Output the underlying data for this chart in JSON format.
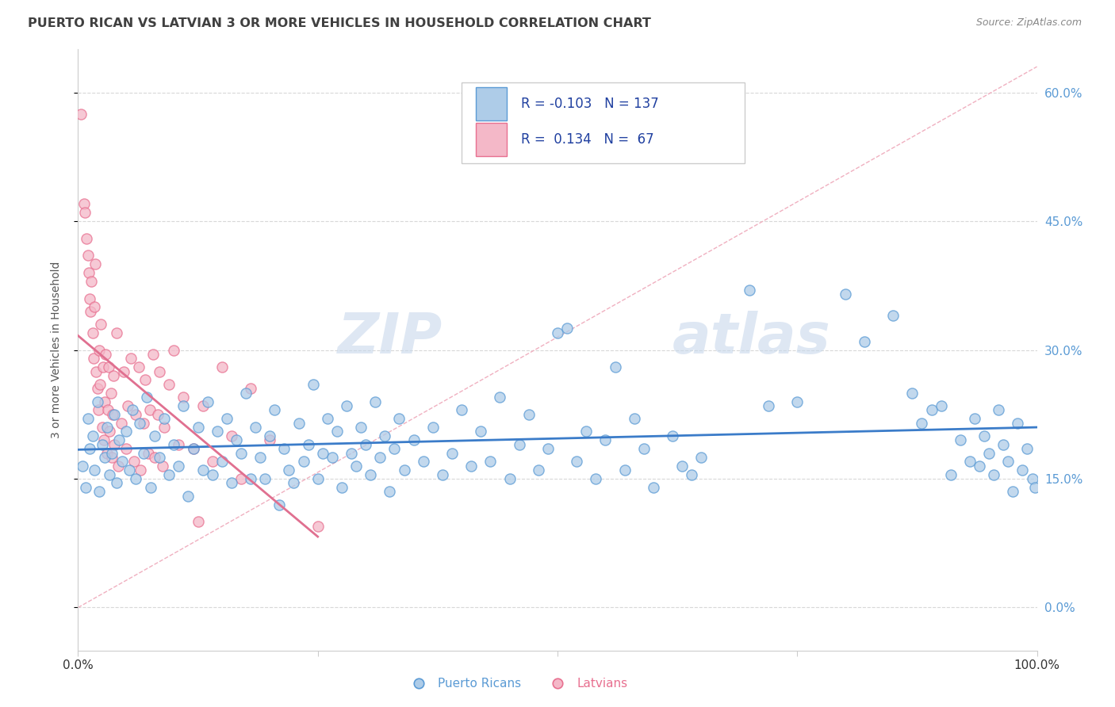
{
  "title": "PUERTO RICAN VS LATVIAN 3 OR MORE VEHICLES IN HOUSEHOLD CORRELATION CHART",
  "source": "Source: ZipAtlas.com",
  "ylabel": "3 or more Vehicles in Household",
  "xlim": [
    0.0,
    100.0
  ],
  "ylim": [
    -5.0,
    65.0
  ],
  "yticks": [
    0.0,
    15.0,
    30.0,
    45.0,
    60.0
  ],
  "ytick_labels": [
    "0.0%",
    "15.0%",
    "30.0%",
    "45.0%",
    "60.0%"
  ],
  "watermark_zip": "ZIP",
  "watermark_atlas": "atlas",
  "pr_color": "#aecce8",
  "pr_edge_color": "#5b9bd5",
  "lv_color": "#f4b8c8",
  "lv_edge_color": "#e87090",
  "pr_line_color": "#3b7cc9",
  "lv_line_color": "#e07090",
  "ref_line_color": "#e0a0b0",
  "grid_color": "#d8d8d8",
  "title_color": "#404040",
  "source_color": "#888888",
  "right_tick_color": "#5b9bd5",
  "legend_text_color": "#2040a0",
  "legend_label_color": "#333333",
  "background_color": "#ffffff",
  "pr_scatter": [
    [
      0.5,
      16.5
    ],
    [
      0.8,
      14.0
    ],
    [
      1.0,
      22.0
    ],
    [
      1.2,
      18.5
    ],
    [
      1.5,
      20.0
    ],
    [
      1.7,
      16.0
    ],
    [
      2.0,
      24.0
    ],
    [
      2.2,
      13.5
    ],
    [
      2.5,
      19.0
    ],
    [
      2.8,
      17.5
    ],
    [
      3.0,
      21.0
    ],
    [
      3.3,
      15.5
    ],
    [
      3.5,
      18.0
    ],
    [
      3.8,
      22.5
    ],
    [
      4.0,
      14.5
    ],
    [
      4.3,
      19.5
    ],
    [
      4.6,
      17.0
    ],
    [
      5.0,
      20.5
    ],
    [
      5.3,
      16.0
    ],
    [
      5.7,
      23.0
    ],
    [
      6.0,
      15.0
    ],
    [
      6.4,
      21.5
    ],
    [
      6.8,
      18.0
    ],
    [
      7.2,
      24.5
    ],
    [
      7.6,
      14.0
    ],
    [
      8.0,
      20.0
    ],
    [
      8.5,
      17.5
    ],
    [
      9.0,
      22.0
    ],
    [
      9.5,
      15.5
    ],
    [
      10.0,
      19.0
    ],
    [
      10.5,
      16.5
    ],
    [
      11.0,
      23.5
    ],
    [
      11.5,
      13.0
    ],
    [
      12.0,
      18.5
    ],
    [
      12.5,
      21.0
    ],
    [
      13.0,
      16.0
    ],
    [
      13.5,
      24.0
    ],
    [
      14.0,
      15.5
    ],
    [
      14.5,
      20.5
    ],
    [
      15.0,
      17.0
    ],
    [
      15.5,
      22.0
    ],
    [
      16.0,
      14.5
    ],
    [
      16.5,
      19.5
    ],
    [
      17.0,
      18.0
    ],
    [
      17.5,
      25.0
    ],
    [
      18.0,
      15.0
    ],
    [
      18.5,
      21.0
    ],
    [
      19.0,
      17.5
    ],
    [
      19.5,
      15.0
    ],
    [
      20.0,
      20.0
    ],
    [
      20.5,
      23.0
    ],
    [
      21.0,
      12.0
    ],
    [
      21.5,
      18.5
    ],
    [
      22.0,
      16.0
    ],
    [
      22.5,
      14.5
    ],
    [
      23.0,
      21.5
    ],
    [
      23.5,
      17.0
    ],
    [
      24.0,
      19.0
    ],
    [
      24.5,
      26.0
    ],
    [
      25.0,
      15.0
    ],
    [
      25.5,
      18.0
    ],
    [
      26.0,
      22.0
    ],
    [
      26.5,
      17.5
    ],
    [
      27.0,
      20.5
    ],
    [
      27.5,
      14.0
    ],
    [
      28.0,
      23.5
    ],
    [
      28.5,
      18.0
    ],
    [
      29.0,
      16.5
    ],
    [
      29.5,
      21.0
    ],
    [
      30.0,
      19.0
    ],
    [
      30.5,
      15.5
    ],
    [
      31.0,
      24.0
    ],
    [
      31.5,
      17.5
    ],
    [
      32.0,
      20.0
    ],
    [
      32.5,
      13.5
    ],
    [
      33.0,
      18.5
    ],
    [
      33.5,
      22.0
    ],
    [
      34.0,
      16.0
    ],
    [
      35.0,
      19.5
    ],
    [
      36.0,
      17.0
    ],
    [
      37.0,
      21.0
    ],
    [
      38.0,
      15.5
    ],
    [
      39.0,
      18.0
    ],
    [
      40.0,
      23.0
    ],
    [
      41.0,
      16.5
    ],
    [
      42.0,
      20.5
    ],
    [
      43.0,
      17.0
    ],
    [
      44.0,
      24.5
    ],
    [
      45.0,
      15.0
    ],
    [
      46.0,
      19.0
    ],
    [
      47.0,
      22.5
    ],
    [
      48.0,
      16.0
    ],
    [
      49.0,
      18.5
    ],
    [
      50.0,
      32.0
    ],
    [
      51.0,
      32.5
    ],
    [
      52.0,
      17.0
    ],
    [
      53.0,
      20.5
    ],
    [
      54.0,
      15.0
    ],
    [
      55.0,
      19.5
    ],
    [
      56.0,
      28.0
    ],
    [
      57.0,
      16.0
    ],
    [
      58.0,
      22.0
    ],
    [
      59.0,
      18.5
    ],
    [
      60.0,
      14.0
    ],
    [
      62.0,
      20.0
    ],
    [
      63.0,
      16.5
    ],
    [
      64.0,
      15.5
    ],
    [
      65.0,
      17.5
    ],
    [
      70.0,
      37.0
    ],
    [
      72.0,
      23.5
    ],
    [
      75.0,
      24.0
    ],
    [
      80.0,
      36.5
    ],
    [
      82.0,
      31.0
    ],
    [
      85.0,
      34.0
    ],
    [
      87.0,
      25.0
    ],
    [
      88.0,
      21.5
    ],
    [
      89.0,
      23.0
    ],
    [
      90.0,
      23.5
    ],
    [
      91.0,
      15.5
    ],
    [
      92.0,
      19.5
    ],
    [
      93.0,
      17.0
    ],
    [
      93.5,
      22.0
    ],
    [
      94.0,
      16.5
    ],
    [
      94.5,
      20.0
    ],
    [
      95.0,
      18.0
    ],
    [
      95.5,
      15.5
    ],
    [
      96.0,
      23.0
    ],
    [
      96.5,
      19.0
    ],
    [
      97.0,
      17.0
    ],
    [
      97.5,
      13.5
    ],
    [
      98.0,
      21.5
    ],
    [
      98.5,
      16.0
    ],
    [
      99.0,
      18.5
    ],
    [
      99.5,
      15.0
    ],
    [
      99.8,
      14.0
    ]
  ],
  "lv_scatter": [
    [
      0.3,
      57.5
    ],
    [
      0.6,
      47.0
    ],
    [
      0.7,
      46.0
    ],
    [
      0.9,
      43.0
    ],
    [
      1.0,
      41.0
    ],
    [
      1.1,
      39.0
    ],
    [
      1.2,
      36.0
    ],
    [
      1.3,
      34.5
    ],
    [
      1.4,
      38.0
    ],
    [
      1.5,
      32.0
    ],
    [
      1.6,
      29.0
    ],
    [
      1.7,
      35.0
    ],
    [
      1.8,
      40.0
    ],
    [
      1.9,
      27.5
    ],
    [
      2.0,
      25.5
    ],
    [
      2.1,
      23.0
    ],
    [
      2.2,
      30.0
    ],
    [
      2.3,
      26.0
    ],
    [
      2.4,
      33.0
    ],
    [
      2.5,
      21.0
    ],
    [
      2.6,
      28.0
    ],
    [
      2.7,
      19.5
    ],
    [
      2.8,
      24.0
    ],
    [
      2.9,
      29.5
    ],
    [
      3.0,
      18.0
    ],
    [
      3.1,
      23.0
    ],
    [
      3.2,
      28.0
    ],
    [
      3.3,
      20.5
    ],
    [
      3.4,
      25.0
    ],
    [
      3.5,
      17.5
    ],
    [
      3.6,
      22.5
    ],
    [
      3.7,
      27.0
    ],
    [
      3.8,
      19.0
    ],
    [
      4.0,
      32.0
    ],
    [
      4.2,
      16.5
    ],
    [
      4.5,
      21.5
    ],
    [
      4.8,
      27.5
    ],
    [
      5.0,
      18.5
    ],
    [
      5.2,
      23.5
    ],
    [
      5.5,
      29.0
    ],
    [
      5.8,
      17.0
    ],
    [
      6.0,
      22.5
    ],
    [
      6.3,
      28.0
    ],
    [
      6.5,
      16.0
    ],
    [
      6.8,
      21.5
    ],
    [
      7.0,
      26.5
    ],
    [
      7.3,
      18.0
    ],
    [
      7.5,
      23.0
    ],
    [
      7.8,
      29.5
    ],
    [
      8.0,
      17.5
    ],
    [
      8.3,
      22.5
    ],
    [
      8.5,
      27.5
    ],
    [
      8.8,
      16.5
    ],
    [
      9.0,
      21.0
    ],
    [
      9.5,
      26.0
    ],
    [
      10.0,
      30.0
    ],
    [
      10.5,
      19.0
    ],
    [
      11.0,
      24.5
    ],
    [
      12.0,
      18.5
    ],
    [
      12.5,
      10.0
    ],
    [
      13.0,
      23.5
    ],
    [
      14.0,
      17.0
    ],
    [
      15.0,
      28.0
    ],
    [
      16.0,
      20.0
    ],
    [
      17.0,
      15.0
    ],
    [
      18.0,
      25.5
    ],
    [
      20.0,
      19.5
    ],
    [
      25.0,
      9.5
    ]
  ],
  "lv_trend": [
    0.0,
    18.0,
    25.0,
    28.5
  ],
  "pr_trend": [
    0.0,
    18.5,
    100.0,
    15.0
  ]
}
